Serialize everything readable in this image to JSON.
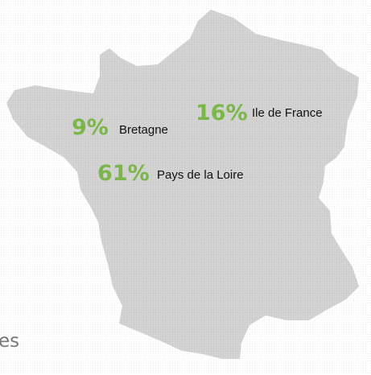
{
  "map": {
    "regions": [
      {
        "label": "16%",
        "name": "Ile de France"
      },
      {
        "label": "9%",
        "name": "Bretagne"
      },
      {
        "label": "61%",
        "name": "Pays de la Loire"
      }
    ]
  },
  "fragment": "es"
}
